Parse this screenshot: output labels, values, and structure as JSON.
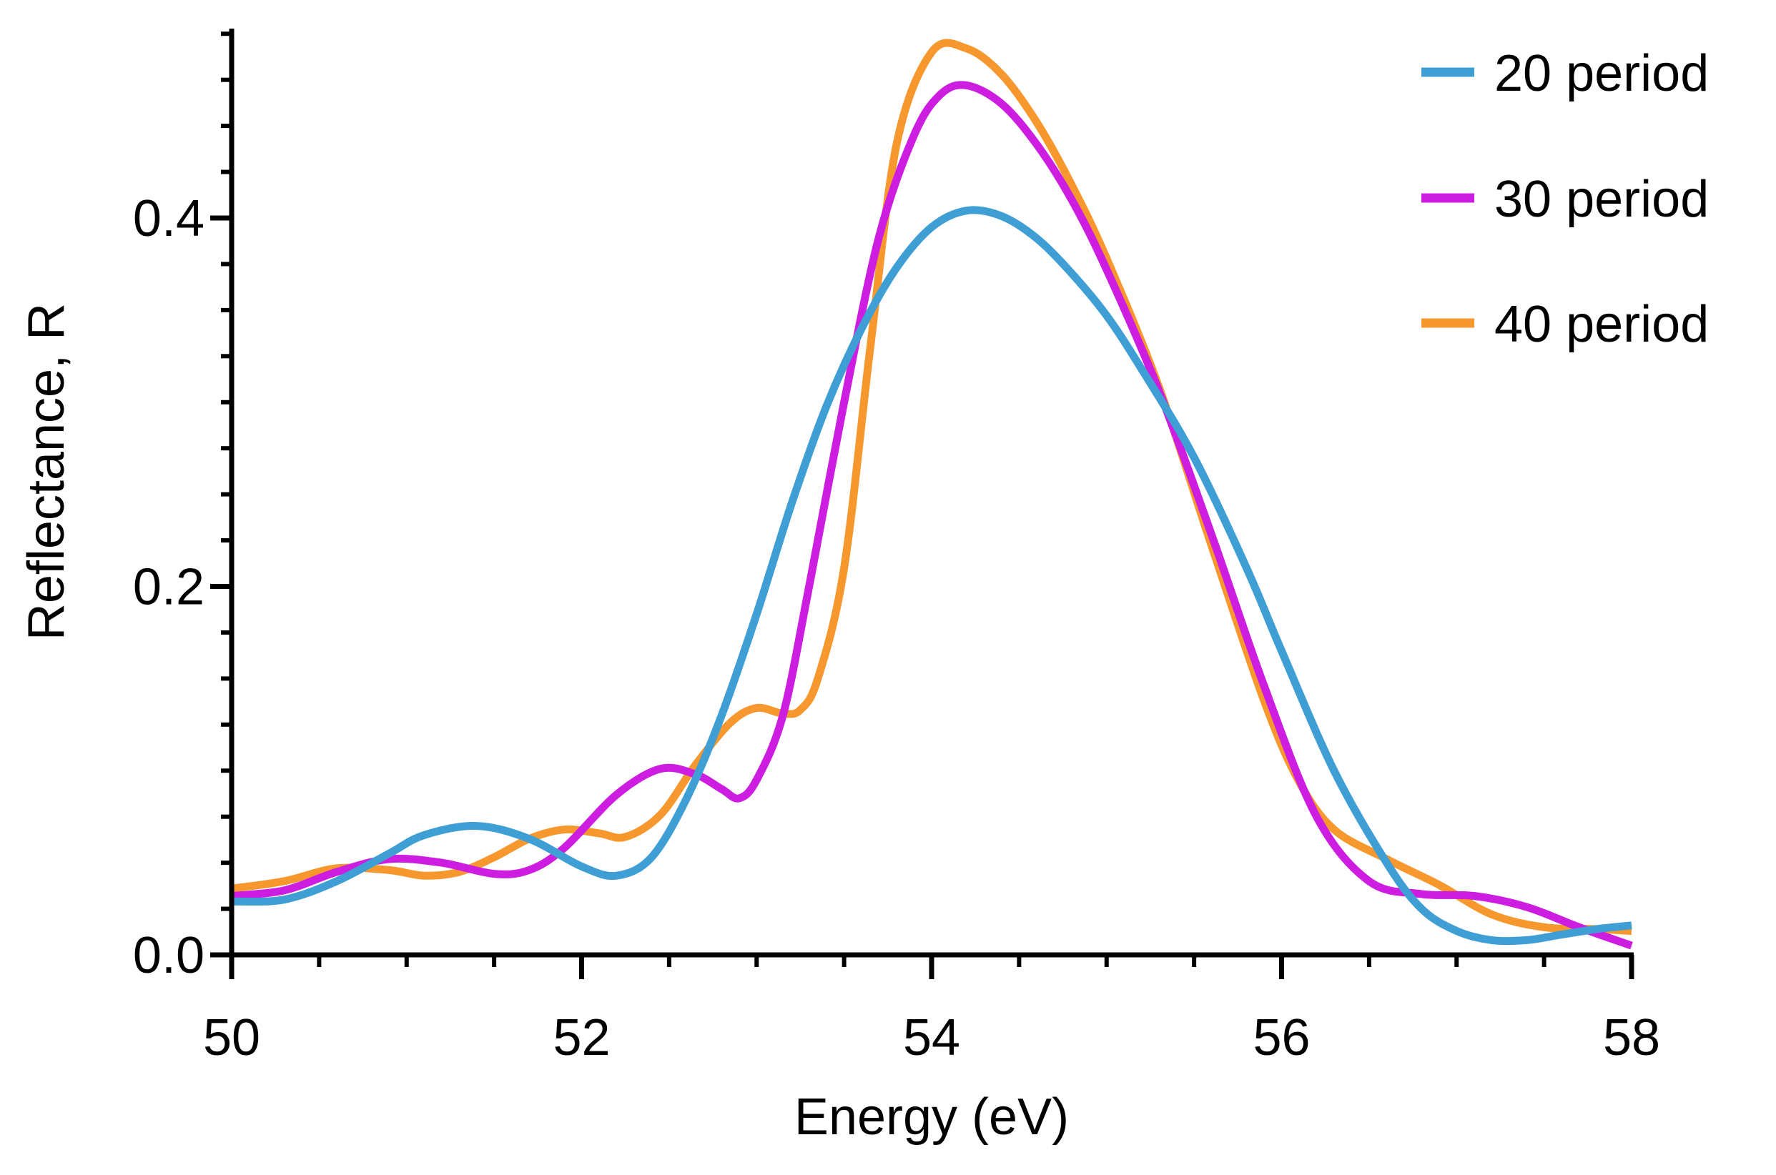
{
  "chart_data": {
    "type": "line",
    "title": "",
    "xlabel": "Energy (eV)",
    "ylabel": "Reflectance, R",
    "xlim": [
      50,
      58
    ],
    "ylim": [
      0,
      0.5
    ],
    "grid": false,
    "legend_position": "top-right",
    "x_ticks": [
      50,
      52,
      54,
      56,
      58
    ],
    "x_tick_labels": [
      "50",
      "52",
      "54",
      "56",
      "58"
    ],
    "y_ticks": [
      0,
      0.2,
      0.4
    ],
    "y_tick_labels": [
      "0.0",
      "0.2",
      "0.4"
    ],
    "series": [
      {
        "name": "20 period",
        "color": "#3f9fd4",
        "x": [
          50.0,
          50.3,
          50.6,
          50.9,
          51.1,
          51.4,
          51.7,
          52.0,
          52.2,
          52.4,
          52.6,
          52.8,
          53.0,
          53.2,
          53.4,
          53.6,
          53.8,
          54.0,
          54.2,
          54.4,
          54.6,
          54.8,
          55.0,
          55.2,
          55.5,
          55.8,
          56.0,
          56.3,
          56.6,
          56.8,
          57.0,
          57.2,
          57.4,
          57.6,
          57.8,
          58.0
        ],
        "y": [
          0.029,
          0.03,
          0.04,
          0.055,
          0.065,
          0.07,
          0.063,
          0.048,
          0.043,
          0.053,
          0.085,
          0.13,
          0.185,
          0.245,
          0.298,
          0.34,
          0.373,
          0.395,
          0.404,
          0.401,
          0.389,
          0.37,
          0.347,
          0.318,
          0.27,
          0.21,
          0.165,
          0.1,
          0.05,
          0.025,
          0.013,
          0.008,
          0.008,
          0.011,
          0.014,
          0.016
        ]
      },
      {
        "name": "30 period",
        "color": "#cc1de0",
        "x": [
          50.0,
          50.3,
          50.6,
          50.9,
          51.2,
          51.5,
          51.7,
          51.9,
          52.2,
          52.45,
          52.65,
          52.8,
          52.9,
          53.0,
          53.15,
          53.3,
          53.5,
          53.7,
          53.9,
          54.05,
          54.2,
          54.4,
          54.6,
          54.8,
          55.0,
          55.3,
          55.6,
          55.9,
          56.2,
          56.5,
          56.8,
          57.1,
          57.4,
          57.7,
          58.0
        ],
        "y": [
          0.032,
          0.035,
          0.045,
          0.052,
          0.05,
          0.044,
          0.046,
          0.058,
          0.087,
          0.101,
          0.098,
          0.09,
          0.085,
          0.095,
          0.13,
          0.2,
          0.3,
          0.39,
          0.445,
          0.467,
          0.472,
          0.462,
          0.44,
          0.41,
          0.372,
          0.306,
          0.228,
          0.146,
          0.075,
          0.04,
          0.033,
          0.032,
          0.026,
          0.015,
          0.005
        ]
      },
      {
        "name": "40 period",
        "color": "#f7982e",
        "x": [
          50.0,
          50.3,
          50.6,
          50.9,
          51.1,
          51.3,
          51.5,
          51.7,
          51.9,
          52.1,
          52.25,
          52.45,
          52.65,
          52.85,
          53.0,
          53.15,
          53.25,
          53.35,
          53.5,
          53.65,
          53.8,
          54.0,
          54.2,
          54.4,
          54.6,
          54.8,
          55.0,
          55.3,
          55.6,
          55.9,
          56.1,
          56.3,
          56.6,
          56.9,
          57.2,
          57.5,
          57.8,
          58.0
        ],
        "y": [
          0.036,
          0.04,
          0.047,
          0.046,
          0.043,
          0.045,
          0.053,
          0.063,
          0.068,
          0.066,
          0.064,
          0.076,
          0.103,
          0.126,
          0.134,
          0.131,
          0.133,
          0.15,
          0.21,
          0.33,
          0.44,
          0.49,
          0.492,
          0.478,
          0.452,
          0.418,
          0.378,
          0.308,
          0.222,
          0.138,
          0.094,
          0.068,
          0.052,
          0.038,
          0.022,
          0.015,
          0.014,
          0.013
        ]
      }
    ]
  }
}
